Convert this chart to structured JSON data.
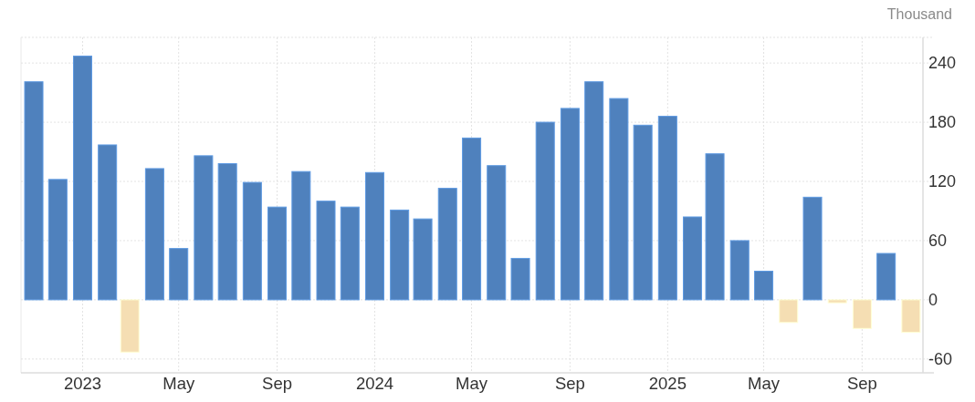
{
  "chart_data": {
    "type": "bar",
    "ylabel": "Thousand",
    "x": [
      "2022-11",
      "2022-12",
      "2023-01",
      "2023-02",
      "2023-03",
      "2023-04",
      "2023-05",
      "2023-06",
      "2023-07",
      "2023-08",
      "2023-09",
      "2023-10",
      "2023-11",
      "2023-12",
      "2024-01",
      "2024-02",
      "2024-03",
      "2024-04",
      "2024-05",
      "2024-06",
      "2024-07",
      "2024-08",
      "2024-09",
      "2024-10",
      "2024-11",
      "2024-12",
      "2025-01",
      "2025-02",
      "2025-03",
      "2025-04",
      "2025-05",
      "2025-06",
      "2025-07",
      "2025-08",
      "2025-09",
      "2025-10",
      "2025-11"
    ],
    "values": [
      221,
      122,
      247,
      157,
      -53,
      133,
      52,
      146,
      138,
      119,
      94,
      130,
      100,
      94,
      129,
      91,
      82,
      113,
      164,
      136,
      42,
      180,
      194,
      221,
      204,
      177,
      186,
      84,
      148,
      60,
      29,
      -23,
      104,
      -3,
      -29,
      47,
      -33
    ],
    "colors": [
      "#4f81bd",
      "#4f81bd",
      "#4f81bd",
      "#4f81bd",
      "#f5deb3",
      "#4f81bd",
      "#4f81bd",
      "#4f81bd",
      "#4f81bd",
      "#4f81bd",
      "#4f81bd",
      "#4f81bd",
      "#4f81bd",
      "#4f81bd",
      "#4f81bd",
      "#4f81bd",
      "#4f81bd",
      "#4f81bd",
      "#4f81bd",
      "#4f81bd",
      "#4f81bd",
      "#4f81bd",
      "#4f81bd",
      "#4f81bd",
      "#4f81bd",
      "#4f81bd",
      "#4f81bd",
      "#4f81bd",
      "#4f81bd",
      "#4f81bd",
      "#4f81bd",
      "#f5deb3",
      "#4f81bd",
      "#f5deb3",
      "#f5deb3",
      "#4f81bd",
      "#f5deb3"
    ],
    "xlim": [
      "2022-10-16",
      "2025-11-16"
    ],
    "xticks": [
      {
        "value": "2023-01",
        "label": "2023"
      },
      {
        "value": "2023-05",
        "label": "May"
      },
      {
        "value": "2023-09",
        "label": "Sep"
      },
      {
        "value": "2024-01",
        "label": "2024"
      },
      {
        "value": "2024-05",
        "label": "May"
      },
      {
        "value": "2024-09",
        "label": "Sep"
      },
      {
        "value": "2025-01",
        "label": "2025"
      },
      {
        "value": "2025-05",
        "label": "May"
      },
      {
        "value": "2025-09",
        "label": "Sep"
      }
    ],
    "ylim": [
      -74,
      266
    ],
    "yticks": [
      -60,
      0,
      60,
      120,
      180,
      240
    ],
    "grid": true
  }
}
